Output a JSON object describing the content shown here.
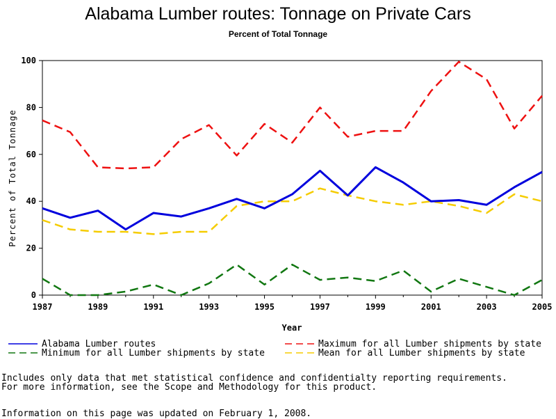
{
  "chart_data": {
    "type": "line",
    "title": "Alabama Lumber routes: Tonnage on Private Cars",
    "subtitle": "Percent of Total Tonnage",
    "xlabel": "Year",
    "ylabel": "Percent of Total Tonnage",
    "xlim": [
      1987,
      2005
    ],
    "ylim": [
      0,
      100
    ],
    "x_ticks": [
      1987,
      1989,
      1991,
      1993,
      1995,
      1997,
      1999,
      2001,
      2003,
      2005
    ],
    "y_ticks": [
      0,
      20,
      40,
      60,
      80,
      100
    ],
    "x": [
      1987,
      1988,
      1989,
      1990,
      1991,
      1992,
      1993,
      1994,
      1995,
      1996,
      1997,
      1998,
      1999,
      2000,
      2001,
      2002,
      2003,
      2004,
      2005
    ],
    "series": [
      {
        "name": "Alabama Lumber routes",
        "color": "#0000dd",
        "style": "solid",
        "values": [
          37,
          33,
          36,
          28,
          35,
          33.5,
          37,
          41,
          37,
          43,
          53,
          42.5,
          54.5,
          48,
          40,
          40.5,
          38.5,
          46,
          52.5
        ]
      },
      {
        "name": "Maximum for all Lumber shipments by state",
        "color": "#ee1111",
        "style": "dashed",
        "values": [
          74.5,
          69.5,
          54.5,
          54,
          54.5,
          66.5,
          72.5,
          59.5,
          73,
          65,
          80,
          67.5,
          70,
          70,
          87,
          99.5,
          92,
          71,
          85
        ]
      },
      {
        "name": "Minimum for all Lumber shipments by state",
        "color": "#117711",
        "style": "dashed",
        "values": [
          7,
          0,
          0,
          1.5,
          4.5,
          0,
          5,
          13,
          4.5,
          13,
          6.5,
          7.5,
          6,
          10.5,
          1.5,
          7,
          3.5,
          0,
          6.5
        ]
      },
      {
        "name": "Mean for all Lumber shipments by state",
        "color": "#f5cc00",
        "style": "dashed",
        "values": [
          32,
          28,
          27,
          27,
          26,
          27,
          27,
          38,
          40,
          40,
          45.5,
          42.5,
          40,
          38.5,
          40,
          38,
          35,
          43,
          40
        ]
      }
    ],
    "legend_position": "bottom"
  },
  "footnotes": {
    "line1": "Includes only data that met statistical confidence and confidentialty reporting requirements.",
    "line2": "For more information, see the Scope and Methodology for this product.",
    "line3": "Information on this page was updated on February 1, 2008."
  }
}
